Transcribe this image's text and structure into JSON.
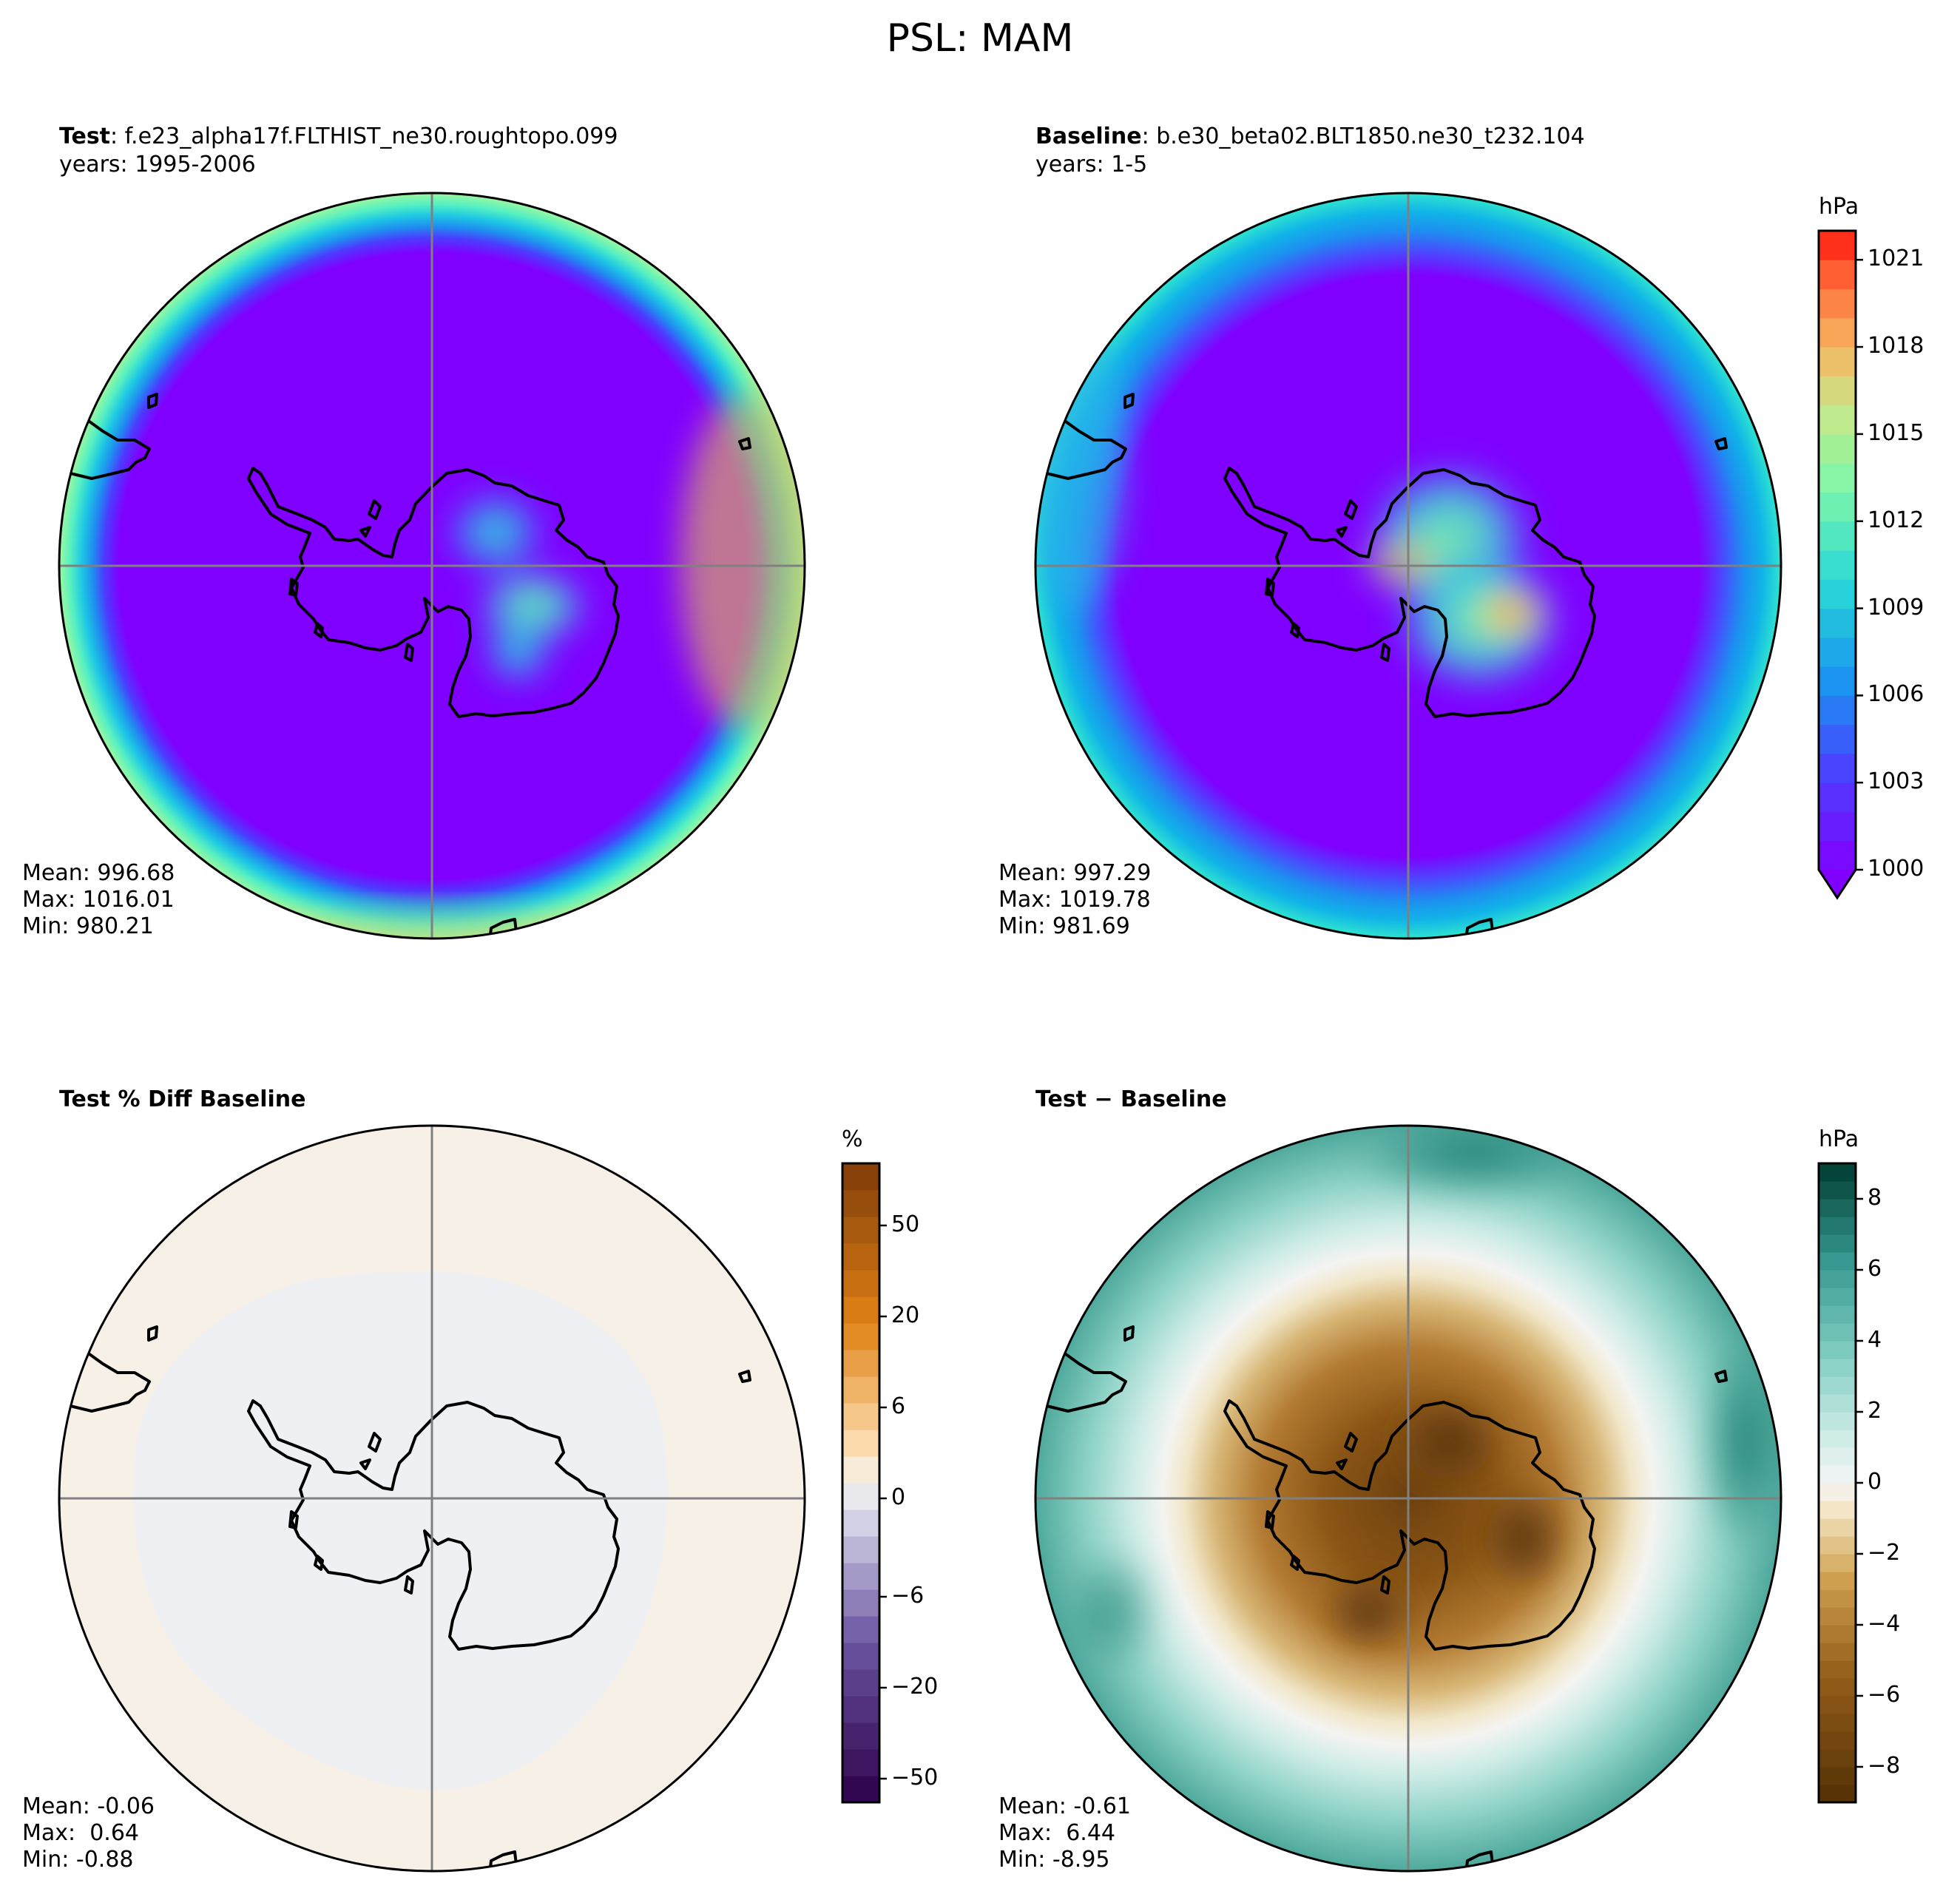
{
  "figure": {
    "title": "PSL: MAM"
  },
  "panels": [
    {
      "id": "test",
      "title_bold": "Test",
      "title_rest": ": f.e23_alpha17f.FLTHIST_ne30.roughtopo.099",
      "subtitle": "years: 1995-2006",
      "stats": {
        "mean": "Mean: 996.68",
        "max": "Max: 1016.01",
        "min": "Min: 980.21"
      }
    },
    {
      "id": "baseline",
      "title_bold": "Baseline",
      "title_rest": ": b.e30_beta02.BLT1850.ne30_t232.104",
      "subtitle": "years: 1-5",
      "stats": {
        "mean": "Mean: 997.29",
        "max": "Max: 1019.78",
        "min": "Min: 981.69"
      }
    },
    {
      "id": "pctdiff",
      "title_bold": "Test % Diff Baseline",
      "title_rest": "",
      "subtitle": "",
      "stats": {
        "mean": "Mean: -0.06",
        "max": "Max:  0.64",
        "min": "Min: -0.88"
      }
    },
    {
      "id": "diff",
      "title_bold": "Test − Baseline",
      "title_rest": "",
      "subtitle": "",
      "stats": {
        "mean": "Mean: -0.61",
        "max": "Max:  6.44",
        "min": "Min: -8.95"
      }
    }
  ],
  "colorbars": {
    "psl": {
      "unit": "hPa",
      "ticks": [
        "1000",
        "1003",
        "1006",
        "1009",
        "1012",
        "1015",
        "1018",
        "1021"
      ]
    },
    "pct": {
      "unit": "%",
      "ticks": [
        "−50",
        "−20",
        "−6",
        "0",
        "6",
        "20",
        "50"
      ]
    },
    "diff": {
      "unit": "hPa",
      "ticks": [
        "−8",
        "−6",
        "−4",
        "−2",
        "0",
        "2",
        "4",
        "6",
        "8"
      ]
    }
  },
  "chart_data": [
    {
      "type": "heatmap",
      "projection": "south-polar-stereographic",
      "panel": "Test",
      "variable": "PSL",
      "season": "MAM",
      "units": "hPa",
      "range": [
        1000,
        1022
      ],
      "extend": "min",
      "colormap": "rainbow",
      "mean": 996.68,
      "max": 1016.01,
      "min": 980.21
    },
    {
      "type": "heatmap",
      "projection": "south-polar-stereographic",
      "panel": "Baseline",
      "variable": "PSL",
      "season": "MAM",
      "units": "hPa",
      "range": [
        1000,
        1022
      ],
      "extend": "min",
      "colormap": "rainbow",
      "mean": 997.29,
      "max": 1019.78,
      "min": 981.69
    },
    {
      "type": "heatmap",
      "projection": "south-polar-stereographic",
      "panel": "Test % Diff Baseline",
      "units": "%",
      "range": [
        -100,
        100
      ],
      "colormap": "PuOr_r",
      "mean": -0.06,
      "max": 0.64,
      "min": -0.88
    },
    {
      "type": "heatmap",
      "projection": "south-polar-stereographic",
      "panel": "Test − Baseline",
      "units": "hPa",
      "range": [
        -9,
        9
      ],
      "colormap": "BrBG",
      "mean": -0.61,
      "max": 6.44,
      "min": -8.95
    }
  ]
}
